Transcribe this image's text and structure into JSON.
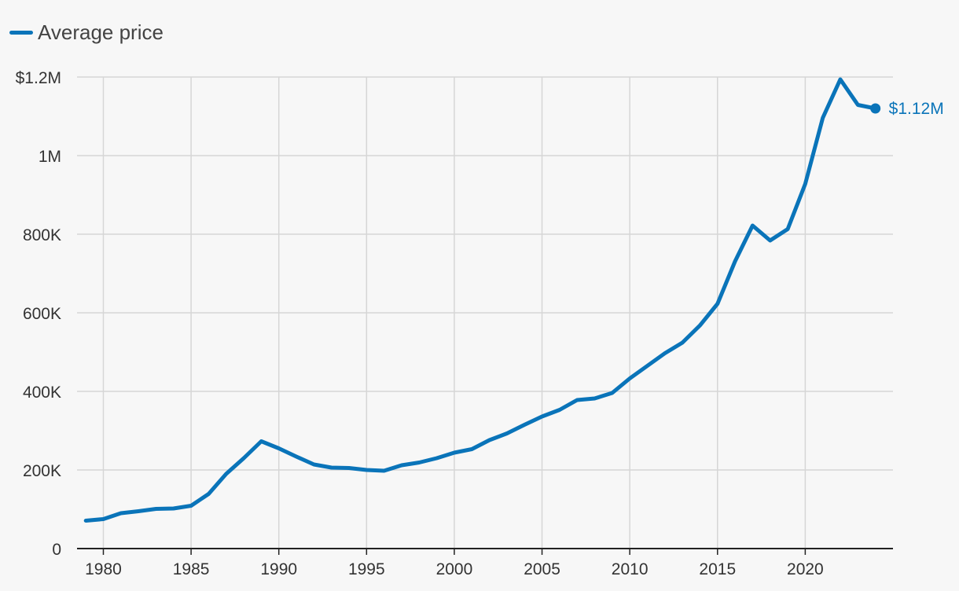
{
  "legend": {
    "label": "Average price",
    "color": "#0a74b9"
  },
  "colors": {
    "line": "#0a74b9",
    "grid": "#d6d6d6",
    "axis": "#222222",
    "background": "#f7f7f7"
  },
  "chart_data": {
    "type": "line",
    "title": "",
    "xlabel": "",
    "ylabel": "",
    "xlim": [
      1978.5,
      2025.0
    ],
    "ylim": [
      0,
      1200000
    ],
    "x_ticks": [
      1980,
      1985,
      1990,
      1995,
      2000,
      2005,
      2010,
      2015,
      2020
    ],
    "x_tick_labels": [
      "1980",
      "1985",
      "1990",
      "1995",
      "2000",
      "2005",
      "2010",
      "2015",
      "2020"
    ],
    "y_ticks": [
      0,
      200000,
      400000,
      600000,
      800000,
      1000000,
      1200000
    ],
    "y_tick_labels": [
      "0",
      "200K",
      "400K",
      "600K",
      "800K",
      "1M",
      "$1.2M"
    ],
    "grid": true,
    "legend_position": "top-left",
    "series": [
      {
        "name": "Average price",
        "x": [
          1979,
          1980,
          1981,
          1982,
          1983,
          1984,
          1985,
          1986,
          1987,
          1988,
          1989,
          1990,
          1991,
          1992,
          1993,
          1994,
          1995,
          1996,
          1997,
          1998,
          1999,
          2000,
          2001,
          2002,
          2003,
          2004,
          2005,
          2006,
          2007,
          2008,
          2009,
          2010,
          2011,
          2012,
          2013,
          2014,
          2015,
          2016,
          2017,
          2018,
          2019,
          2020,
          2021,
          2022,
          2023,
          2024
        ],
        "values": [
          71000,
          75000,
          90000,
          95000,
          101000,
          102000,
          109000,
          139000,
          190000,
          230000,
          273000,
          255000,
          234000,
          214000,
          206000,
          205000,
          200000,
          198000,
          212000,
          219000,
          230000,
          244000,
          253000,
          276000,
          293000,
          315000,
          336000,
          353000,
          378000,
          382000,
          396000,
          433000,
          465000,
          497000,
          524000,
          568000,
          623000,
          731000,
          822000,
          784000,
          813000,
          928000,
          1096000,
          1194000,
          1129000,
          1120000
        ]
      }
    ],
    "annotations": [
      {
        "label": "$1.12M",
        "x": 2024,
        "y": 1120000
      }
    ]
  }
}
